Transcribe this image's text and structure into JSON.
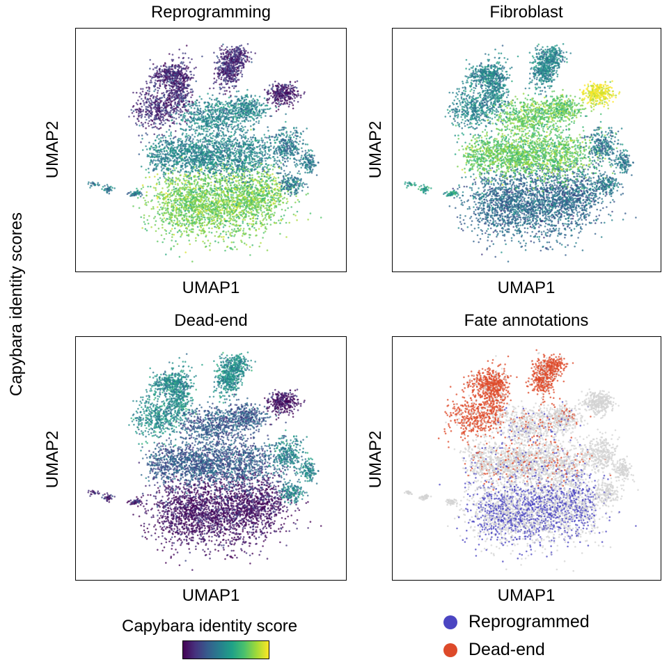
{
  "figure": {
    "ylabel": "Capybara identity scores",
    "colorbar_title": "Capybara identity score",
    "colormap": [
      "#440154",
      "#46327e",
      "#365c8d",
      "#277f8e",
      "#1fa187",
      "#4ac16d",
      "#a0da39",
      "#fde725"
    ]
  },
  "chart_data": [
    {
      "type": "scatter",
      "title": "Reprogramming",
      "xlabel": "UMAP1",
      "ylabel": "UMAP2",
      "color_by": "Capybara identity score",
      "high_regions": [
        "bottom lobe"
      ],
      "low_regions": [
        "upper arms",
        "top-right cluster"
      ]
    },
    {
      "type": "scatter",
      "title": "Fibroblast",
      "xlabel": "UMAP1",
      "ylabel": "UMAP2",
      "color_by": "Capybara identity score",
      "high_regions": [
        "top-right cluster",
        "middle band"
      ],
      "low_regions": [
        "bottom lobe"
      ]
    },
    {
      "type": "scatter",
      "title": "Dead-end",
      "xlabel": "UMAP1",
      "ylabel": "UMAP2",
      "color_by": "Capybara identity score",
      "high_regions": [
        "upper arms"
      ],
      "low_regions": [
        "bottom lobe",
        "top-right cluster"
      ]
    },
    {
      "type": "scatter",
      "title": "Fate annotations",
      "xlabel": "UMAP1",
      "ylabel": "UMAP2",
      "legend": [
        {
          "label": "Reprogrammed",
          "color": "#4b45c2"
        },
        {
          "label": "Dead-end",
          "color": "#dd4a2a"
        }
      ],
      "background_color": "#d3d3d3"
    }
  ]
}
